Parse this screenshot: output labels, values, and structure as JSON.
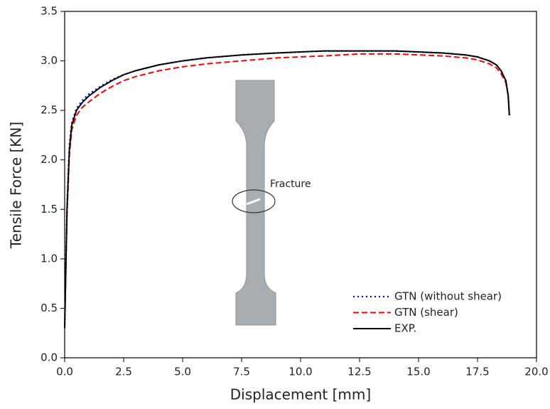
{
  "chart_data": {
    "type": "line",
    "xlabel": "Displacement [mm]",
    "ylabel": "Tensile Force [KN]",
    "annotation": "Fracture",
    "xlim": [
      0,
      20
    ],
    "ylim": [
      0,
      3.5
    ],
    "xticks": [
      {
        "value": 0,
        "label": "0.0"
      },
      2.5,
      {
        "value": 5,
        "label": "5.0"
      },
      7.5,
      {
        "value": 10,
        "label": "10.0"
      },
      12.5,
      {
        "value": 15,
        "label": "15.0"
      },
      17.5,
      {
        "value": 20,
        "label": "20.0"
      }
    ],
    "yticks": [
      {
        "value": 0,
        "label": "0.0"
      },
      0.5,
      {
        "value": 1,
        "label": "1.0"
      },
      1.5,
      {
        "value": 2,
        "label": "2.0"
      },
      2.5,
      {
        "value": 3,
        "label": "3.0"
      },
      3.5
    ],
    "legend": "lower right",
    "x": [
      0,
      0.05,
      0.1,
      0.2,
      0.3,
      0.5,
      0.75,
      1,
      1.5,
      2,
      2.5,
      3,
      4,
      5,
      6,
      7.5,
      9,
      10,
      11,
      12.5,
      14,
      15,
      16,
      17,
      17.5,
      18,
      18.3,
      18.5,
      18.7,
      18.8,
      18.85
    ],
    "series": [
      {
        "name": "GTN (without shear)",
        "color": "#0000ff",
        "style": "dotted",
        "values": [
          0.3,
          0.95,
          1.55,
          2.15,
          2.38,
          2.52,
          2.6,
          2.66,
          2.74,
          2.81,
          2.86,
          2.9,
          2.96,
          3.0,
          3.03,
          3.06,
          3.08,
          3.09,
          3.1,
          3.1,
          3.1,
          3.09,
          3.08,
          3.06,
          3.04,
          3.0,
          2.96,
          2.9,
          2.8,
          2.65,
          2.45
        ]
      },
      {
        "name": "GTN (shear)",
        "color": "#ff0000",
        "style": "dashed",
        "values": [
          0.3,
          0.9,
          1.45,
          2.05,
          2.3,
          2.45,
          2.53,
          2.58,
          2.67,
          2.74,
          2.8,
          2.84,
          2.9,
          2.94,
          2.97,
          3.0,
          3.03,
          3.04,
          3.05,
          3.07,
          3.07,
          3.06,
          3.05,
          3.03,
          3.01,
          2.97,
          2.93,
          2.87,
          2.78,
          2.65,
          2.45
        ]
      },
      {
        "name": "EXP.",
        "color": "#000000",
        "style": "solid",
        "values": [
          0.3,
          0.9,
          1.5,
          2.1,
          2.35,
          2.5,
          2.58,
          2.64,
          2.73,
          2.8,
          2.86,
          2.9,
          2.96,
          3.0,
          3.03,
          3.06,
          3.08,
          3.09,
          3.1,
          3.1,
          3.1,
          3.09,
          3.08,
          3.06,
          3.04,
          3.0,
          2.96,
          2.9,
          2.8,
          2.65,
          2.45
        ]
      }
    ]
  }
}
